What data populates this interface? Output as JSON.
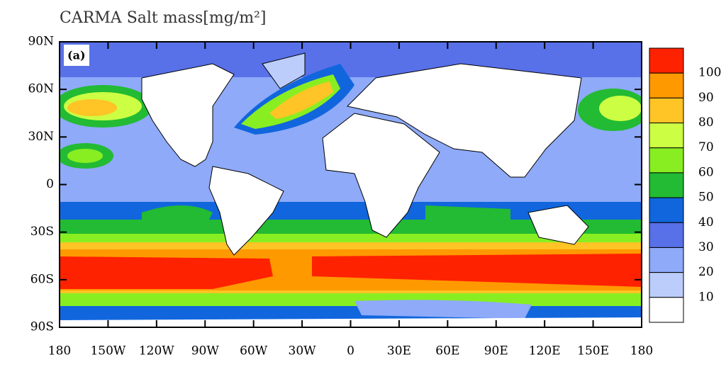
{
  "title": "CARMA Salt mass[mg/m²]",
  "panel_label": "(a)",
  "map": {
    "xlim": [
      -180,
      180
    ],
    "ylim": [
      -90,
      90
    ],
    "xticks": [
      {
        "value": -180,
        "label": "180"
      },
      {
        "value": -150,
        "label": "150W"
      },
      {
        "value": -120,
        "label": "120W"
      },
      {
        "value": -90,
        "label": "90W"
      },
      {
        "value": -60,
        "label": "60W"
      },
      {
        "value": -30,
        "label": "30W"
      },
      0,
      {
        "value": 30,
        "label": "30E"
      },
      {
        "value": 60,
        "label": "60E"
      },
      {
        "value": 90,
        "label": "90E"
      },
      {
        "value": 120,
        "label": "120E"
      },
      {
        "value": 150,
        "label": "150E"
      },
      {
        "value": 180,
        "label": "180"
      }
    ],
    "yticks": [
      {
        "value": 90,
        "label": "90N"
      },
      {
        "value": 60,
        "label": "60N"
      },
      {
        "value": 30,
        "label": "30N"
      },
      0,
      {
        "value": -30,
        "label": "30S"
      },
      {
        "value": -60,
        "label": "60S"
      },
      {
        "value": -90,
        "label": "90S"
      }
    ]
  },
  "colorbar": {
    "levels": [
      100,
      90,
      80,
      70,
      60,
      50,
      40,
      30,
      20,
      10
    ],
    "colors": [
      "#ff2200",
      "#ff9900",
      "#ffc425",
      "#ccff44",
      "#88ee22",
      "#22bb33",
      "#1166dd",
      "#5870e8",
      "#8eaaf8",
      "#bccdfb",
      "#ffffff"
    ]
  }
}
